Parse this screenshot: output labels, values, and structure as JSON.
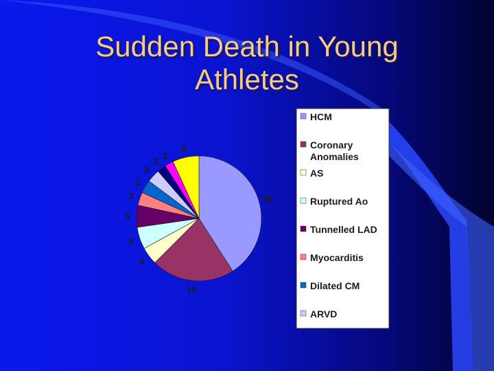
{
  "slide": {
    "title_lines": [
      "Sudden Death in Young",
      "Athletes"
    ]
  },
  "chart_data": {
    "type": "pie",
    "title": "Sudden Death in Young Athletes",
    "slices": [
      {
        "label": "HCM",
        "value": 36,
        "color": "#9999ff"
      },
      {
        "label": "Coronary Anomalies",
        "value": 19,
        "color": "#993366"
      },
      {
        "label": "AS",
        "value": 4,
        "color": "#ffffcc"
      },
      {
        "label": "Ruptured Ao",
        "value": 5,
        "color": "#ccffff"
      },
      {
        "label": "Tunnelled LAD",
        "value": 5,
        "color": "#660066"
      },
      {
        "label": "Myocarditis",
        "value": 3,
        "color": "#ff8080"
      },
      {
        "label": "Dilated CM",
        "value": 3,
        "color": "#0066cc"
      },
      {
        "label": "ARVD",
        "value": 3,
        "color": "#ccccff"
      },
      {
        "label": "",
        "value": 2,
        "color": "#000080"
      },
      {
        "label": "",
        "value": 2,
        "color": "#ff00ff"
      },
      {
        "label": "",
        "value": 6,
        "color": "#ffff00"
      }
    ],
    "legend": {
      "placement": "right",
      "entries": [
        "HCM",
        [
          "Coronary",
          "Anomalies"
        ],
        "AS",
        "Ruptured Ao",
        "Tunnelled LAD",
        "Myocarditis",
        "Dilated CM",
        "ARVD"
      ]
    }
  }
}
